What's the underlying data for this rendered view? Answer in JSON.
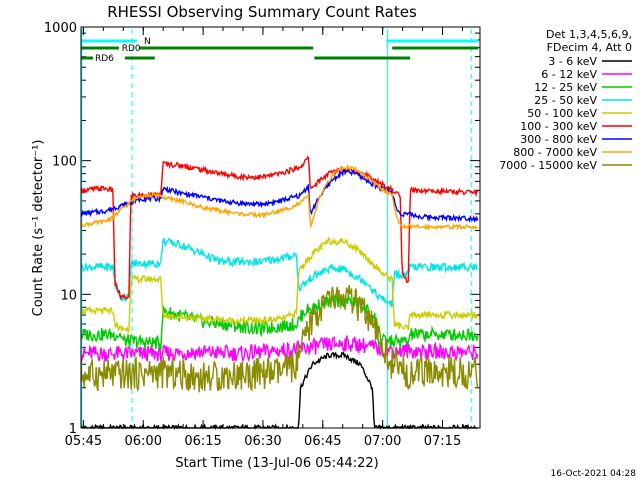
{
  "chart_data": {
    "type": "line",
    "title": "RHESSI Observing Summary Count Rates",
    "xlabel": "Start Time (13-Jul-06 05:44:22)",
    "ylabel": "Count Rate (s⁻¹ detector⁻¹)",
    "y_scale": "log",
    "ylim": [
      1,
      1000
    ],
    "xlim_minutes": [
      0,
      100
    ],
    "x_ticks": [
      {
        "label": "05:45",
        "minute": 0.6
      },
      {
        "label": "06:00",
        "minute": 15.6
      },
      {
        "label": "06:15",
        "minute": 30.6
      },
      {
        "label": "06:30",
        "minute": 45.6
      },
      {
        "label": "06:45",
        "minute": 60.6
      },
      {
        "label": "07:00",
        "minute": 75.6
      },
      {
        "label": "07:15",
        "minute": 90.6
      }
    ],
    "y_ticks": [
      {
        "label": "1",
        "value": 1
      },
      {
        "label": "10",
        "value": 10
      },
      {
        "label": "100",
        "value": 100
      },
      {
        "label": "1000",
        "value": 1000
      }
    ],
    "legend_header": [
      "Det 1,3,4,5,6,9,",
      "FDecim 4, Att 0"
    ],
    "legend_position": "right",
    "timestamp": "16-Oct-2021 04:28",
    "markers": {
      "N": {
        "label": "N",
        "color": "#00ffff"
      },
      "RD0": {
        "label": "RD0",
        "color": "#008000"
      },
      "RD6": {
        "label": "RD6",
        "color": "#008000"
      }
    },
    "series": [
      {
        "name": "3 - 6 keV",
        "color": "#000000",
        "points": [
          [
            0,
            1
          ],
          [
            54.5,
            1
          ],
          [
            55,
            2
          ],
          [
            58,
            3
          ],
          [
            62,
            3.5
          ],
          [
            66,
            3.5
          ],
          [
            70,
            3
          ],
          [
            73,
            2
          ],
          [
            73.5,
            1
          ],
          [
            100,
            1
          ]
        ]
      },
      {
        "name": "6 - 12 keV",
        "color": "#ff00ff",
        "points": [
          [
            0,
            3.6
          ],
          [
            12,
            3.6
          ],
          [
            20,
            3.6
          ],
          [
            30,
            3.7
          ],
          [
            40,
            3.6
          ],
          [
            50,
            3.8
          ],
          [
            55,
            3.9
          ],
          [
            62,
            4.2
          ],
          [
            66,
            4.3
          ],
          [
            70,
            4.2
          ],
          [
            75,
            3.9
          ],
          [
            80,
            3.8
          ],
          [
            90,
            3.7
          ],
          [
            99,
            3.7
          ]
        ]
      },
      {
        "name": "12 - 25 keV",
        "color": "#00cc00",
        "points": [
          [
            0,
            5
          ],
          [
            10,
            5
          ],
          [
            10.5,
            4.5
          ],
          [
            20,
            4.3
          ],
          [
            20.5,
            7.5
          ],
          [
            30,
            6.3
          ],
          [
            45,
            5.5
          ],
          [
            54,
            6
          ],
          [
            56,
            7.5
          ],
          [
            62,
            8.8
          ],
          [
            66,
            9
          ],
          [
            70,
            8.5
          ],
          [
            74,
            6.5
          ],
          [
            74.5,
            4.5
          ],
          [
            82,
            4.4
          ],
          [
            82.5,
            5
          ],
          [
            99,
            5
          ]
        ]
      },
      {
        "name": "25 - 50 keV",
        "color": "#00e5e5",
        "points": [
          [
            0,
            16
          ],
          [
            8,
            16
          ],
          [
            8.5,
            12
          ],
          [
            10,
            9.5
          ],
          [
            12,
            9.5
          ],
          [
            12.5,
            17
          ],
          [
            20,
            17
          ],
          [
            20.5,
            25
          ],
          [
            25,
            23.5
          ],
          [
            35,
            17.5
          ],
          [
            45,
            17.5
          ],
          [
            52,
            19
          ],
          [
            54,
            20
          ],
          [
            54.5,
            11
          ],
          [
            58,
            13.5
          ],
          [
            62,
            15.5
          ],
          [
            66,
            15.5
          ],
          [
            70,
            13
          ],
          [
            72,
            12
          ],
          [
            74,
            10
          ],
          [
            76,
            9
          ],
          [
            78,
            8.5
          ],
          [
            78.5,
            14
          ],
          [
            82,
            14
          ],
          [
            82.5,
            16
          ],
          [
            99,
            16
          ]
        ]
      },
      {
        "name": "50 - 100 keV",
        "color": "#cccc00",
        "points": [
          [
            0,
            7.5
          ],
          [
            8,
            7.5
          ],
          [
            8.5,
            6
          ],
          [
            10,
            5.5
          ],
          [
            12,
            5.5
          ],
          [
            12.5,
            13
          ],
          [
            20,
            13
          ],
          [
            20.5,
            7
          ],
          [
            25,
            6.8
          ],
          [
            40,
            6.3
          ],
          [
            50,
            6.5
          ],
          [
            54,
            7.2
          ],
          [
            54.5,
            15
          ],
          [
            58,
            20
          ],
          [
            62,
            25
          ],
          [
            66,
            25
          ],
          [
            70,
            21
          ],
          [
            74,
            16
          ],
          [
            76,
            14
          ],
          [
            78,
            13
          ],
          [
            78.5,
            6
          ],
          [
            82,
            5.5
          ],
          [
            82.5,
            7
          ],
          [
            99,
            7
          ]
        ]
      },
      {
        "name": "100 - 300 keV",
        "color": "#ff0000",
        "points": [
          [
            0,
            60
          ],
          [
            6,
            62
          ],
          [
            8,
            60
          ],
          [
            8.5,
            12
          ],
          [
            10,
            9.5
          ],
          [
            12,
            9.5
          ],
          [
            12.5,
            55
          ],
          [
            20,
            55
          ],
          [
            20.5,
            95
          ],
          [
            25,
            92
          ],
          [
            30,
            86
          ],
          [
            35,
            80
          ],
          [
            40,
            76
          ],
          [
            45,
            75
          ],
          [
            50,
            80
          ],
          [
            55,
            90
          ],
          [
            57,
            105
          ],
          [
            57.5,
            62
          ],
          [
            62,
            80
          ],
          [
            65,
            86
          ],
          [
            68,
            85
          ],
          [
            70,
            82
          ],
          [
            72,
            76
          ],
          [
            74,
            70
          ],
          [
            76,
            65
          ],
          [
            78,
            60
          ],
          [
            80,
            55
          ],
          [
            80.5,
            14
          ],
          [
            82,
            12
          ],
          [
            82.5,
            60
          ],
          [
            99,
            58
          ]
        ]
      },
      {
        "name": "300 - 800 keV",
        "color": "#0000ff",
        "points": [
          [
            0,
            40
          ],
          [
            6,
            42
          ],
          [
            8,
            44
          ],
          [
            12,
            48
          ],
          [
            15,
            52
          ],
          [
            20,
            52
          ],
          [
            20.5,
            62
          ],
          [
            25,
            57
          ],
          [
            30,
            54
          ],
          [
            35,
            50
          ],
          [
            40,
            48
          ],
          [
            45,
            47
          ],
          [
            50,
            50
          ],
          [
            55,
            55
          ],
          [
            57,
            65
          ],
          [
            57.5,
            40
          ],
          [
            60,
            55
          ],
          [
            63,
            72
          ],
          [
            66,
            83
          ],
          [
            69,
            80
          ],
          [
            72,
            70
          ],
          [
            75,
            62
          ],
          [
            78,
            58
          ],
          [
            79,
            44
          ],
          [
            80,
            40
          ],
          [
            82,
            40
          ],
          [
            85,
            38
          ],
          [
            99,
            37
          ]
        ]
      },
      {
        "name": "800 - 7000 keV",
        "color": "#ffa500",
        "points": [
          [
            0,
            33
          ],
          [
            6,
            35
          ],
          [
            8,
            38
          ],
          [
            12,
            48
          ],
          [
            15,
            55
          ],
          [
            20,
            55
          ],
          [
            20.5,
            53
          ],
          [
            25,
            50
          ],
          [
            30,
            45
          ],
          [
            35,
            42
          ],
          [
            40,
            40
          ],
          [
            45,
            39
          ],
          [
            50,
            42
          ],
          [
            55,
            48
          ],
          [
            57,
            55
          ],
          [
            57.5,
            32
          ],
          [
            60,
            55
          ],
          [
            63,
            78
          ],
          [
            66,
            90
          ],
          [
            69,
            86
          ],
          [
            72,
            74
          ],
          [
            75,
            62
          ],
          [
            78,
            55
          ],
          [
            79,
            38
          ],
          [
            80,
            33
          ],
          [
            82,
            32
          ],
          [
            85,
            32
          ],
          [
            99,
            32
          ]
        ]
      },
      {
        "name": "7000 - 15000 keV",
        "color": "#8b8b00",
        "points": [
          [
            0,
            2.5
          ],
          [
            10,
            2.5
          ],
          [
            20,
            2.6
          ],
          [
            30,
            2.4
          ],
          [
            40,
            2.5
          ],
          [
            50,
            2.6
          ],
          [
            54,
            3
          ],
          [
            56,
            4.5
          ],
          [
            58,
            6.5
          ],
          [
            62,
            9
          ],
          [
            66,
            9.5
          ],
          [
            70,
            8
          ],
          [
            74,
            5
          ],
          [
            78,
            3
          ],
          [
            82,
            2.6
          ],
          [
            90,
            2.6
          ],
          [
            99,
            2.6
          ]
        ]
      }
    ]
  }
}
